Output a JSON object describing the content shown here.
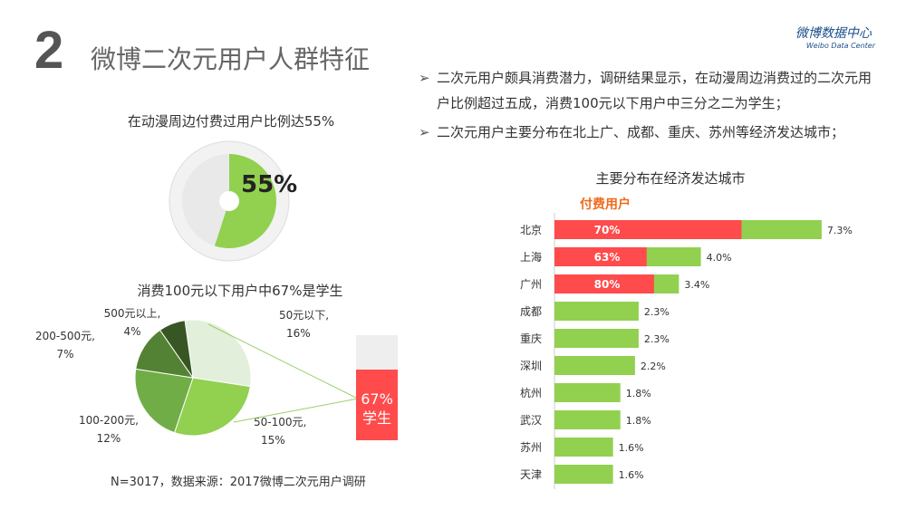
{
  "header": {
    "number": "2",
    "title": "微博二次元用户人群特征",
    "logo": "微博数据中心",
    "logo_sub": "Weibo Data Center"
  },
  "bullets": [
    "二次元用户颇具消费潜力，调研结果显示，在动漫周边消费过的二次元用户比例超过五成，消费100元以下用户中三分之二为学生；",
    "二次元用户主要分布在北上广、成都、重庆、苏州等经济发达城市；"
  ],
  "donut": {
    "title": "在动漫周边付费过用户比例达55%",
    "label": "55%",
    "value": 55,
    "colors": {
      "fill": "#92d050",
      "ring": "#e6e6e6"
    }
  },
  "pie": {
    "title": "消费100元以下用户中67%是学生",
    "footnote": "N=3017，数据来源：2017微博二次元用户调研",
    "student_label": "67%",
    "student_sub": "学生",
    "student_value": 67
  },
  "chart_data": [
    {
      "type": "pie",
      "categories": [
        "50元以下",
        "50-100元",
        "100-200元",
        "200-500元",
        "500元以上"
      ],
      "values": [
        16,
        15,
        12,
        7,
        4
      ],
      "labels": [
        "16%",
        "15%",
        "12%",
        "7%",
        "4%"
      ],
      "colors": [
        "#e2efda",
        "#92d050",
        "#70ad47",
        "#548235",
        "#375623"
      ]
    },
    {
      "type": "bar",
      "title": "主要分布在经济发达城市",
      "legend": "付费用户",
      "categories": [
        "北京",
        "上海",
        "广州",
        "成都",
        "重庆",
        "深圳",
        "杭州",
        "武汉",
        "苏州",
        "天津"
      ],
      "values": [
        7.3,
        4.0,
        3.4,
        2.3,
        2.3,
        2.2,
        1.8,
        1.8,
        1.6,
        1.6
      ],
      "value_labels": [
        "7.3%",
        "4.0%",
        "3.4%",
        "2.3%",
        "2.3%",
        "2.2%",
        "1.8%",
        "1.8%",
        "1.6%",
        "1.6%"
      ],
      "paid_share": [
        70,
        63,
        80,
        null,
        null,
        null,
        null,
        null,
        null,
        null
      ],
      "paid_labels": [
        "70%",
        "63%",
        "80%"
      ],
      "colors": {
        "total": "#92d050",
        "paid": "#ff4b4b",
        "legend": "#f06a1c"
      }
    }
  ]
}
